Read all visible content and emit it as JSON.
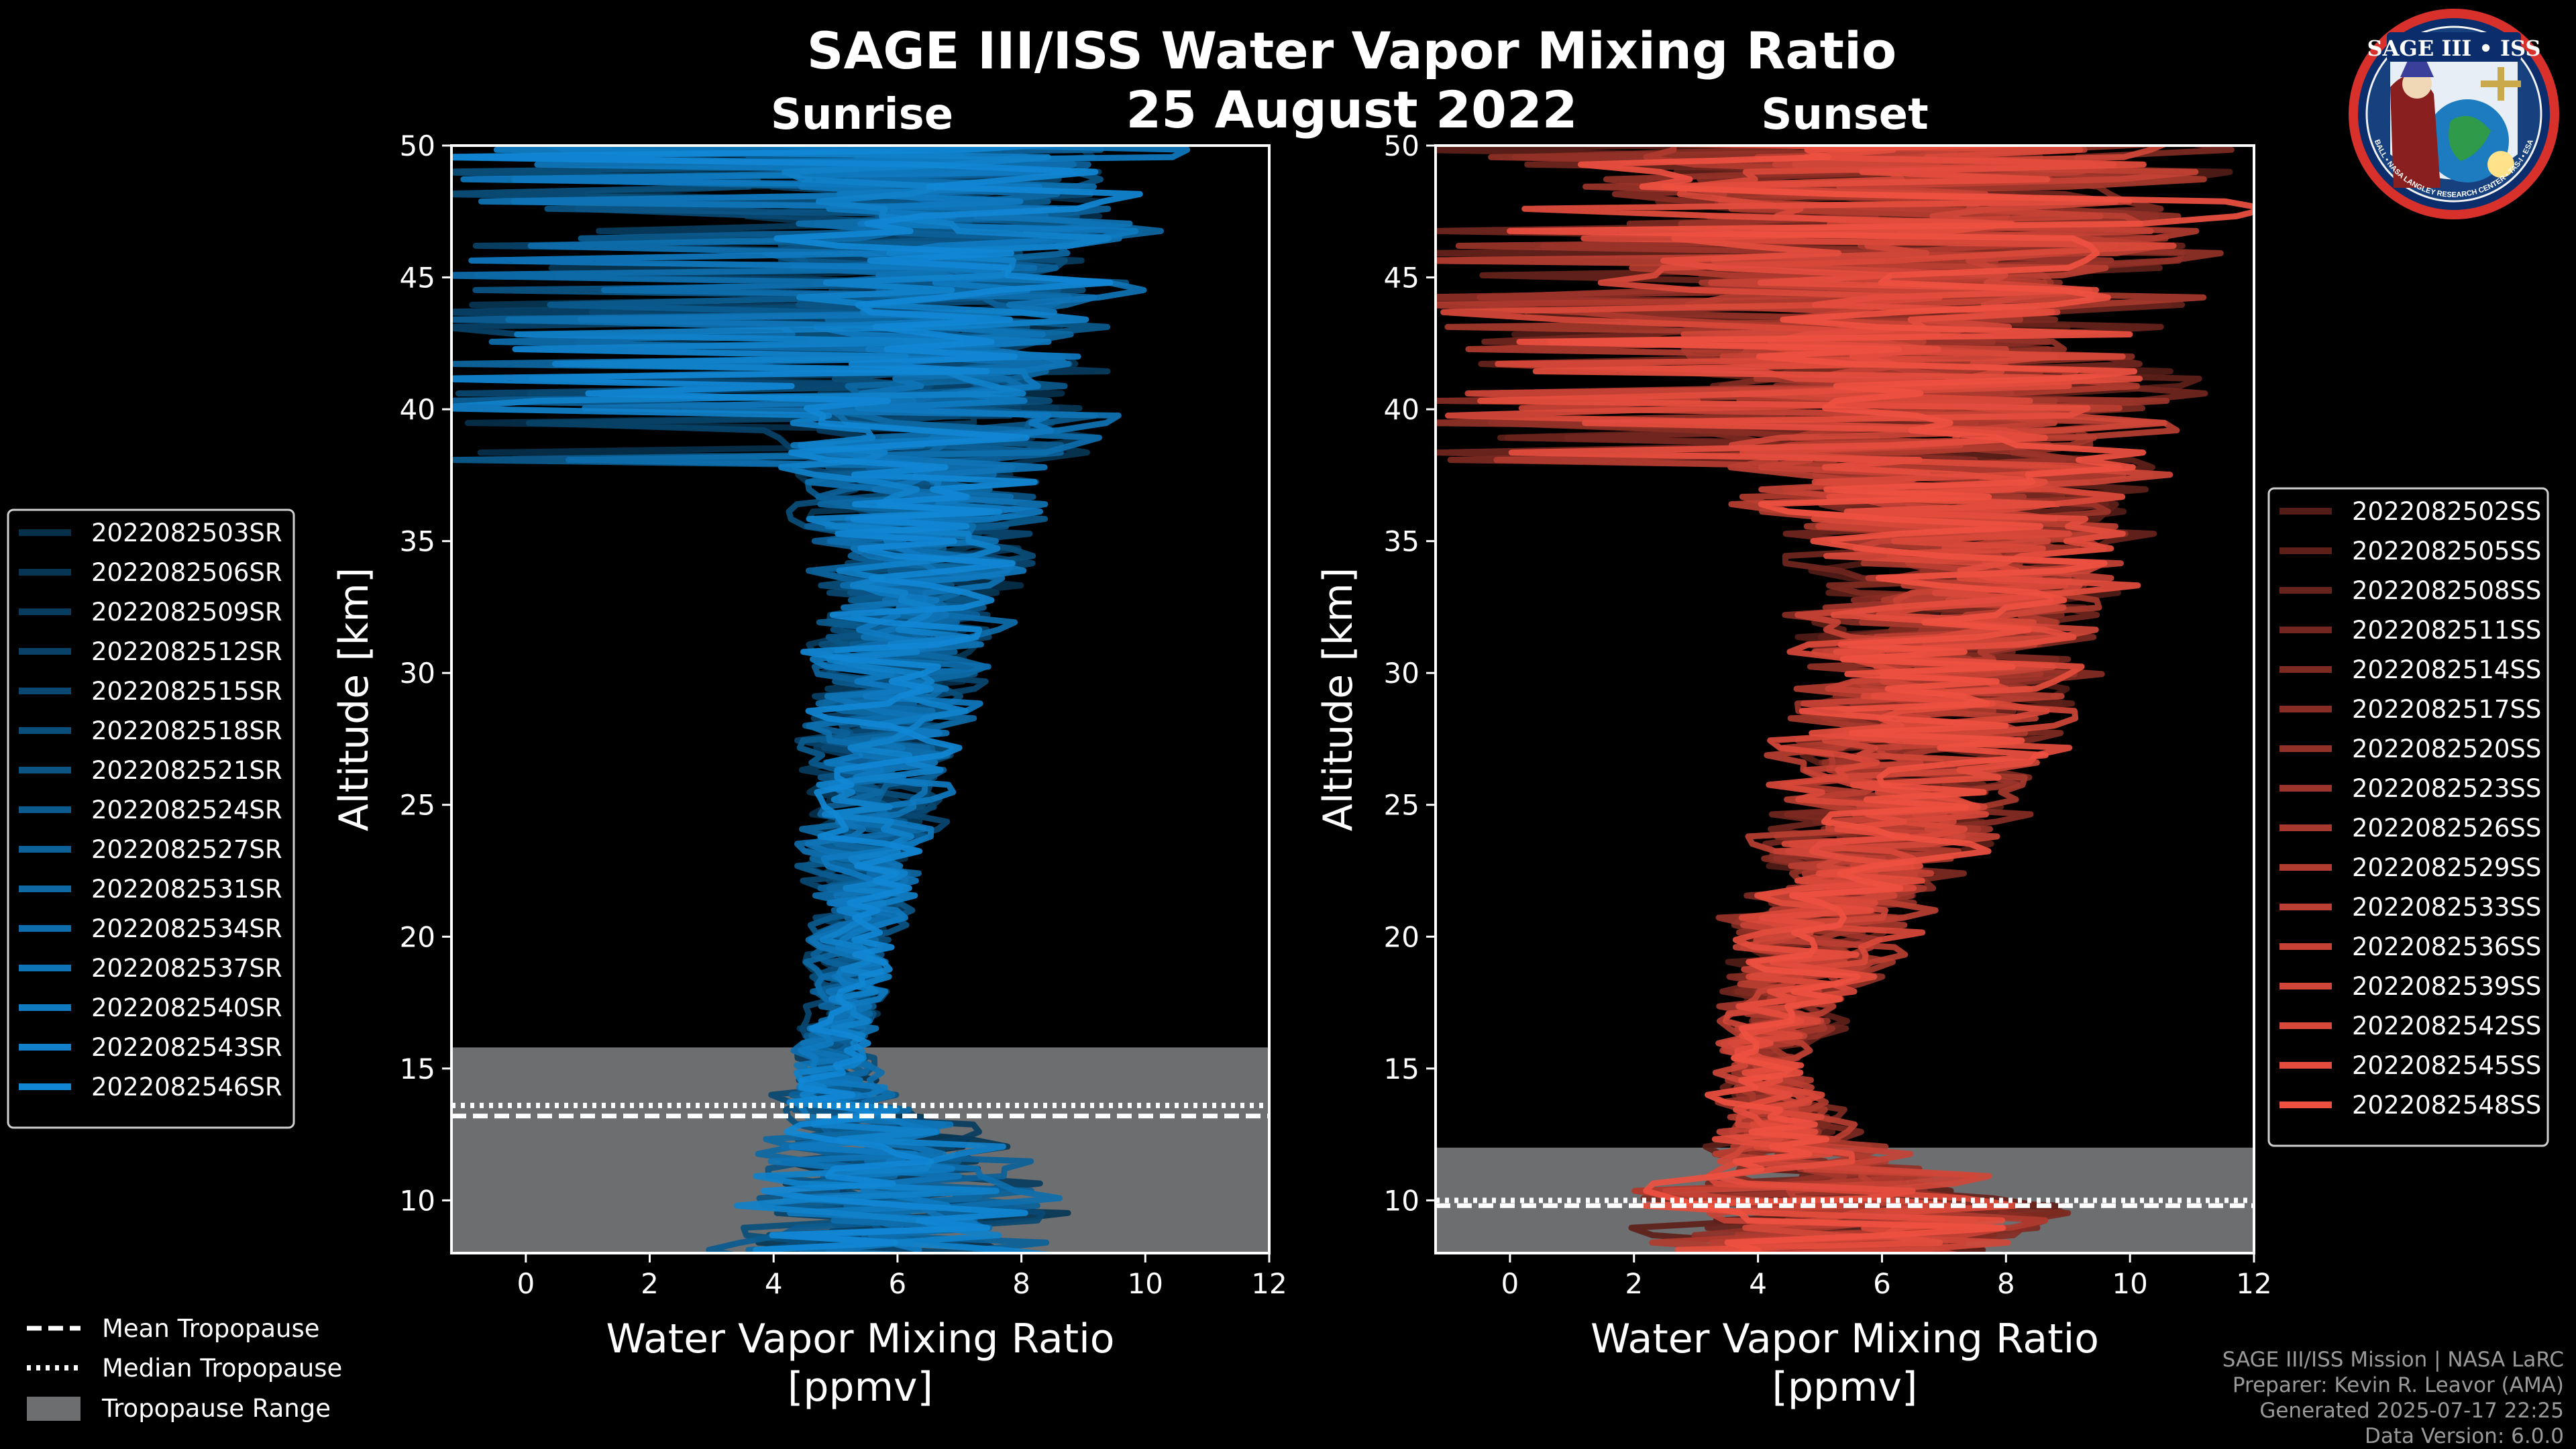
{
  "title": "SAGE III/ISS Water Vapor Mixing Ratio",
  "date": "25 August 2022",
  "logo": {
    "text": "SAGE III • ISS",
    "ring_text": "BALL • NASA LANGLEY RESEARCH CENTER • TAS-I • ESA"
  },
  "colors": {
    "sunrise": "#1187d4",
    "sunset": "#ee5040",
    "tropopause_band": "#6d6e70",
    "background": "#000000"
  },
  "chart_data": [
    {
      "type": "line",
      "panel": "Sunrise",
      "title": "Sunrise",
      "xlabel": "Water Vapor Mixing Ratio",
      "xunit": "[ppmv]",
      "ylabel": "Altitude [km]",
      "xlim": [
        -1.2,
        12
      ],
      "ylim": [
        8,
        50
      ],
      "xticks": [
        0,
        2,
        4,
        6,
        8,
        10,
        12
      ],
      "yticks": [
        10,
        15,
        20,
        25,
        30,
        35,
        40,
        45,
        50
      ],
      "tropopause": {
        "range_km": [
          8,
          15.8
        ],
        "mean_km": 13.2,
        "median_km": 13.6
      },
      "series": [
        "2022082503SR",
        "2022082506SR",
        "2022082509SR",
        "2022082512SR",
        "2022082515SR",
        "2022082518SR",
        "2022082521SR",
        "2022082524SR",
        "2022082527SR",
        "2022082531SR",
        "2022082534SR",
        "2022082537SR",
        "2022082540SR",
        "2022082543SR",
        "2022082546SR"
      ],
      "profile_envelope": {
        "altitude_km": [
          10,
          12,
          13,
          14,
          15,
          16,
          17,
          18,
          20,
          22,
          25,
          28,
          30,
          33,
          36,
          40,
          45,
          50
        ],
        "center_ppmv": [
          6.0,
          5.5,
          5.2,
          5.0,
          4.9,
          5.0,
          5.1,
          5.2,
          5.3,
          5.4,
          5.6,
          5.8,
          6.0,
          6.2,
          6.5,
          6.8,
          6.8,
          6.8
        ],
        "spread_ppmv": [
          3.5,
          2.8,
          2.0,
          1.3,
          0.9,
          0.8,
          0.8,
          0.9,
          1.0,
          1.2,
          1.5,
          1.8,
          2.0,
          2.3,
          2.7,
          3.2,
          3.8,
          4.5
        ]
      }
    },
    {
      "type": "line",
      "panel": "Sunset",
      "title": "Sunset",
      "xlabel": "Water Vapor Mixing Ratio",
      "xunit": "[ppmv]",
      "ylabel": "Altitude [km]",
      "xlim": [
        -1.2,
        12
      ],
      "ylim": [
        8,
        50
      ],
      "xticks": [
        0,
        2,
        4,
        6,
        8,
        10,
        12
      ],
      "yticks": [
        10,
        15,
        20,
        25,
        30,
        35,
        40,
        45,
        50
      ],
      "tropopause": {
        "range_km": [
          8,
          12
        ],
        "mean_km": 9.8,
        "median_km": 10.0
      },
      "series": [
        "2022082502SS",
        "2022082505SS",
        "2022082508SS",
        "2022082511SS",
        "2022082514SS",
        "2022082517SS",
        "2022082520SS",
        "2022082523SS",
        "2022082526SS",
        "2022082529SS",
        "2022082533SS",
        "2022082536SS",
        "2022082539SS",
        "2022082542SS",
        "2022082545SS",
        "2022082548SS"
      ],
      "profile_envelope": {
        "altitude_km": [
          10,
          12,
          13,
          14,
          15,
          16,
          17,
          18,
          20,
          22,
          25,
          28,
          30,
          33,
          36,
          40,
          45,
          50
        ],
        "center_ppmv": [
          5.5,
          4.5,
          4.3,
          4.2,
          4.2,
          4.3,
          4.4,
          4.6,
          5.0,
          5.5,
          6.2,
          6.8,
          7.0,
          7.2,
          7.2,
          6.8,
          6.5,
          6.5
        ],
        "spread_ppmv": [
          4.5,
          2.0,
          1.4,
          1.2,
          1.1,
          1.2,
          1.4,
          1.6,
          2.0,
          2.3,
          2.7,
          3.0,
          3.2,
          3.5,
          4.0,
          5.0,
          6.0,
          6.5
        ]
      }
    }
  ],
  "legend_keys": [
    "Mean Tropopause",
    "Median Tropopause",
    "Tropopause Range"
  ],
  "credits": [
    "SAGE III/ISS Mission | NASA LaRC",
    "Preparer: Kevin R. Leavor (AMA)",
    "Generated 2025-07-17 22:25",
    "Data Version: 6.0.0"
  ]
}
